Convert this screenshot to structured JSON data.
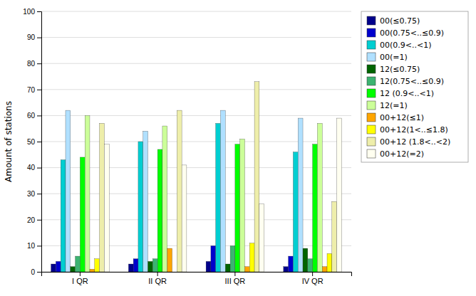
{
  "chart_data": {
    "type": "bar",
    "ylabel": "Amount of stations",
    "categories": [
      "I QR",
      "II QR",
      "III QR",
      "IV QR"
    ],
    "series": [
      {
        "name": "00(≤0.75)",
        "color": "#00008B",
        "values": [
          3,
          3,
          4,
          2
        ]
      },
      {
        "name": "00(0.75<..≤0.9)",
        "color": "#0000CD",
        "values": [
          4,
          5,
          10,
          6
        ]
      },
      {
        "name": "00(0.9<..<1)",
        "color": "#00CED1",
        "values": [
          43,
          50,
          57,
          46
        ]
      },
      {
        "name": "00(=1)",
        "color": "#B0E0FF",
        "values": [
          62,
          54,
          62,
          59
        ]
      },
      {
        "name": "12(≤0.75)",
        "color": "#006400",
        "values": [
          2,
          4,
          3,
          9
        ]
      },
      {
        "name": "12(0.75<..≤0.9)",
        "color": "#3CB371",
        "values": [
          6,
          5,
          10,
          5
        ]
      },
      {
        "name": "12 (0.9<..<1)",
        "color": "#00FF00",
        "values": [
          44,
          47,
          49,
          49
        ]
      },
      {
        "name": "12(=1)",
        "color": "#CCFF99",
        "values": [
          60,
          56,
          51,
          57
        ]
      },
      {
        "name": "00+12(≤1)",
        "color": "#FFA500",
        "values": [
          1,
          9,
          2,
          2
        ]
      },
      {
        "name": "00+12(1<..≤1.8)",
        "color": "#FFFF00",
        "values": [
          5,
          0,
          11,
          7
        ]
      },
      {
        "name": "00+12 (1.8<..<2)",
        "color": "#EEEEAA",
        "values": [
          57,
          62,
          73,
          27
        ]
      },
      {
        "name": "00+12(=2)",
        "color": "#FFFFF0",
        "values": [
          49,
          41,
          26,
          59
        ]
      }
    ],
    "ylim": [
      0,
      100
    ],
    "yticks": [
      0,
      10,
      20,
      30,
      40,
      50,
      60,
      70,
      80,
      90,
      100
    ],
    "grid": true,
    "legend": "right"
  }
}
